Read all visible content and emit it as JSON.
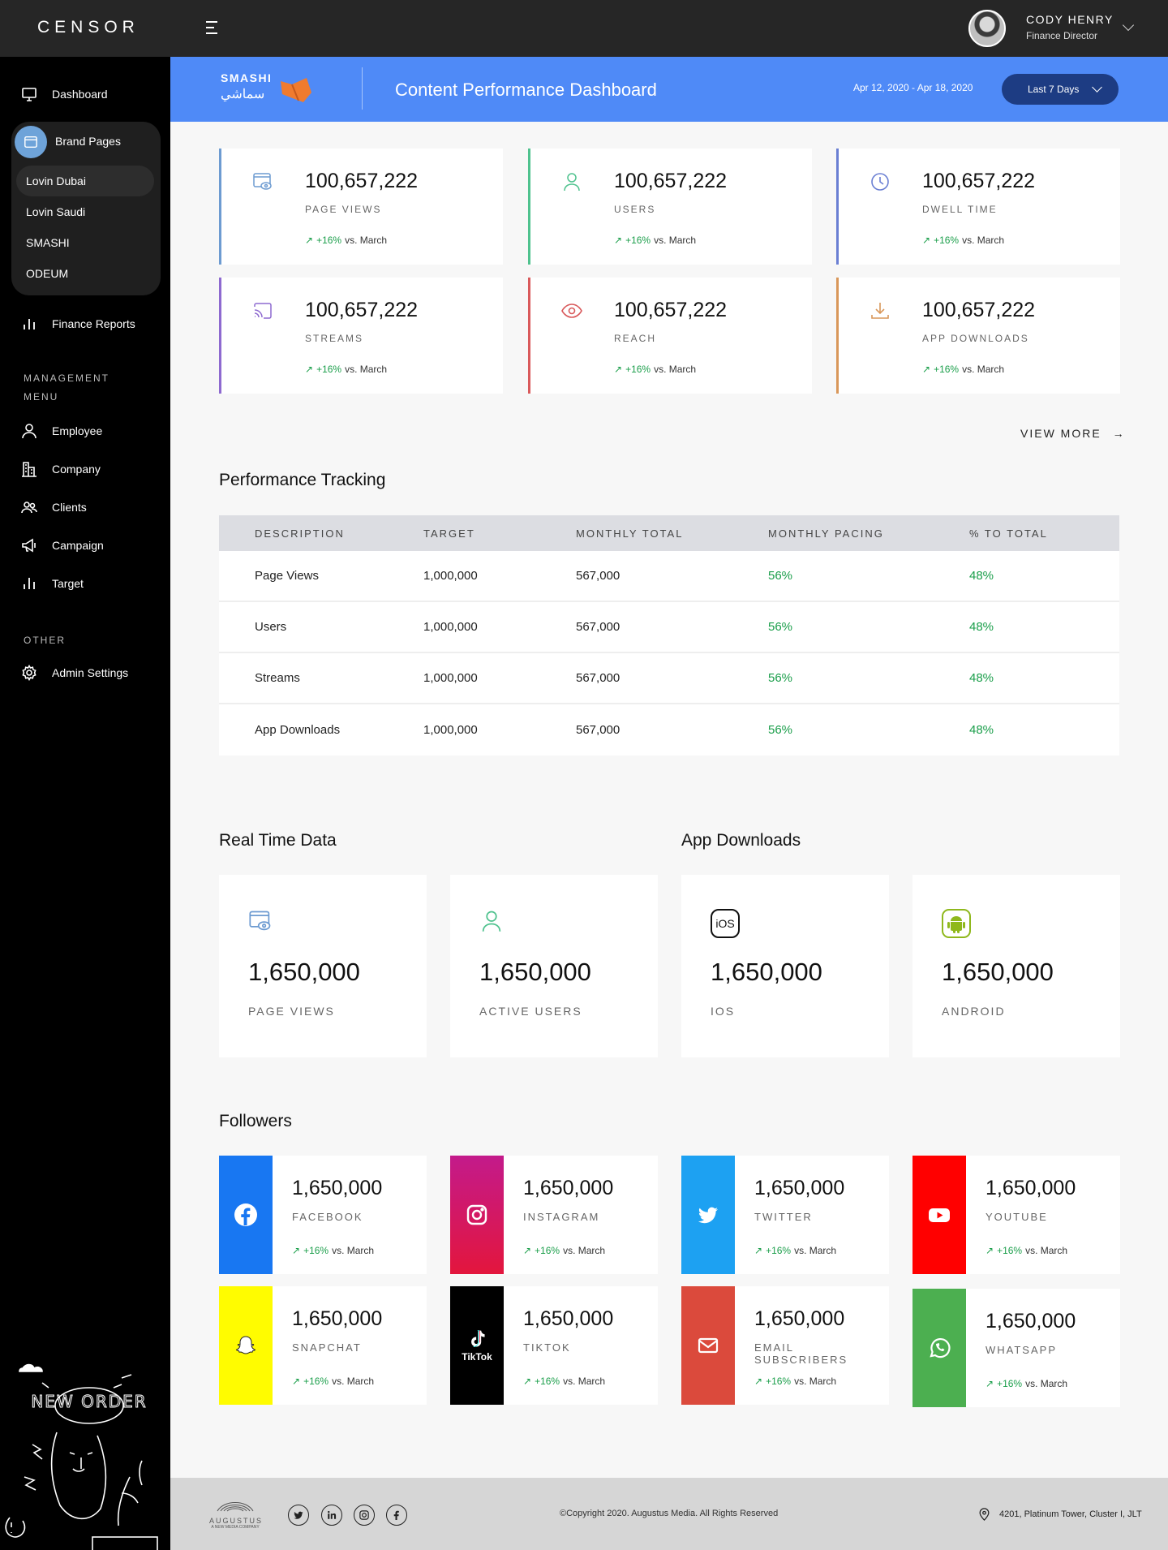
{
  "app": {
    "logo": "CENSOR"
  },
  "user": {
    "name": "CODY HENRY",
    "role": "Finance Director"
  },
  "sidebar": {
    "dashboard": "Dashboard",
    "brand_pages": "Brand Pages",
    "brands": [
      "Lovin Dubai",
      "Lovin Saudi",
      "SMASHI",
      "ODEUM"
    ],
    "finance_reports": "Finance Reports",
    "management_head_1": "MANAGEMENT",
    "management_head_2": "MENU",
    "management": [
      "Employee",
      "Company",
      "Clients",
      "Campaign",
      "Target"
    ],
    "other_head": "OTHER",
    "admin_settings": "Admin Settings",
    "illustration_text": "NEW ORDER"
  },
  "banner": {
    "brand_en": "SMASHI",
    "brand_ar": "سماشي",
    "title": "Content Performance Dashboard",
    "date_range": "Apr 12, 2020 - Apr 18, 2020",
    "period": "Last 7 Days",
    "brand_color": "#4f8af7"
  },
  "stats": [
    {
      "value": "100,657,222",
      "label": "PAGE VIEWS",
      "change": "+16%",
      "vs": "vs. March",
      "color": "#6d9bd1",
      "icon": "browser-eye-icon"
    },
    {
      "value": "100,657,222",
      "label": "USERS",
      "change": "+16%",
      "vs": "vs. March",
      "color": "#4fc28e",
      "icon": "user-icon"
    },
    {
      "value": "100,657,222",
      "label": "DWELL TIME",
      "change": "+16%",
      "vs": "vs. March",
      "color": "#6a7fd3",
      "icon": "clock-icon"
    },
    {
      "value": "100,657,222",
      "label": "STREAMS",
      "change": "+16%",
      "vs": "vs. March",
      "color": "#8e6ad0",
      "icon": "cast-icon"
    },
    {
      "value": "100,657,222",
      "label": "REACH",
      "change": "+16%",
      "vs": "vs. March",
      "color": "#d9595b",
      "icon": "eye-icon"
    },
    {
      "value": "100,657,222",
      "label": "APP DOWNLOADS",
      "change": "+16%",
      "vs": "vs. March",
      "color": "#d9975a",
      "icon": "download-icon"
    }
  ],
  "view_more": "VIEW MORE",
  "performance": {
    "title": "Performance Tracking",
    "headers": [
      "DESCRIPTION",
      "TARGET",
      "MONTHLY TOTAL",
      "MONTHLY PACING",
      "% TO TOTAL"
    ],
    "rows": [
      [
        "Page Views",
        "1,000,000",
        "567,000",
        "56%",
        "48%"
      ],
      [
        "Users",
        "1,000,000",
        "567,000",
        "56%",
        "48%"
      ],
      [
        "Streams",
        "1,000,000",
        "567,000",
        "56%",
        "48%"
      ],
      [
        "App Downloads",
        "1,000,000",
        "567,000",
        "56%",
        "48%"
      ]
    ]
  },
  "realtime": {
    "title": "Real Time Data",
    "items": [
      {
        "value": "1,650,000",
        "label": "PAGE VIEWS",
        "icon": "browser-eye-icon"
      },
      {
        "value": "1,650,000",
        "label": "ACTIVE USERS",
        "icon": "user-icon"
      }
    ]
  },
  "downloads": {
    "title": "App Downloads",
    "items": [
      {
        "value": "1,650,000",
        "label": "IOS",
        "icon": "ios-icon",
        "icon_text": "iOS"
      },
      {
        "value": "1,650,000",
        "label": "ANDROID",
        "icon": "android-icon"
      }
    ]
  },
  "followers": {
    "title": "Followers",
    "items": [
      {
        "value": "1,650,000",
        "label": "FACEBOOK",
        "change": "+16%",
        "vs": "vs. March",
        "color": "#1877f2",
        "icon": "facebook-icon"
      },
      {
        "value": "1,650,000",
        "label": "INSTAGRAM",
        "change": "+16%",
        "vs": "vs. March",
        "color": "#d4145a",
        "icon": "instagram-icon"
      },
      {
        "value": "1,650,000",
        "label": "TWITTER",
        "change": "+16%",
        "vs": "vs. March",
        "color": "#1da1f2",
        "icon": "twitter-icon"
      },
      {
        "value": "1,650,000",
        "label": "YOUTUBE",
        "change": "+16%",
        "vs": "vs. March",
        "color": "#ff0000",
        "icon": "youtube-icon"
      },
      {
        "value": "1,650,000",
        "label": "SNAPCHAT",
        "change": "+16%",
        "vs": "vs. March",
        "color": "#fffc00",
        "icon": "snapchat-icon"
      },
      {
        "value": "1,650,000",
        "label": "TIKTOK",
        "change": "+16%",
        "vs": "vs. March",
        "color": "#000000",
        "icon": "tiktok-icon",
        "icon_text": "TikTok"
      },
      {
        "value": "1,650,000",
        "label": "EMAIL SUBSCRIBERS",
        "change": "+16%",
        "vs": "vs. March",
        "color": "#db4a3c",
        "icon": "mail-icon"
      },
      {
        "value": "1,650,000",
        "label": "WHATSAPP",
        "change": "+16%",
        "vs": "vs. March",
        "color": "#4caf50",
        "icon": "whatsapp-icon"
      }
    ]
  },
  "footer": {
    "logo_name": "AUGUSTUS",
    "logo_tagline": "A NEW MEDIA COMPANY",
    "copyright": "©Copyright 2020. Augustus Media. All Rights Reserved",
    "address": "4201, Platinum Tower, Cluster I, JLT"
  }
}
